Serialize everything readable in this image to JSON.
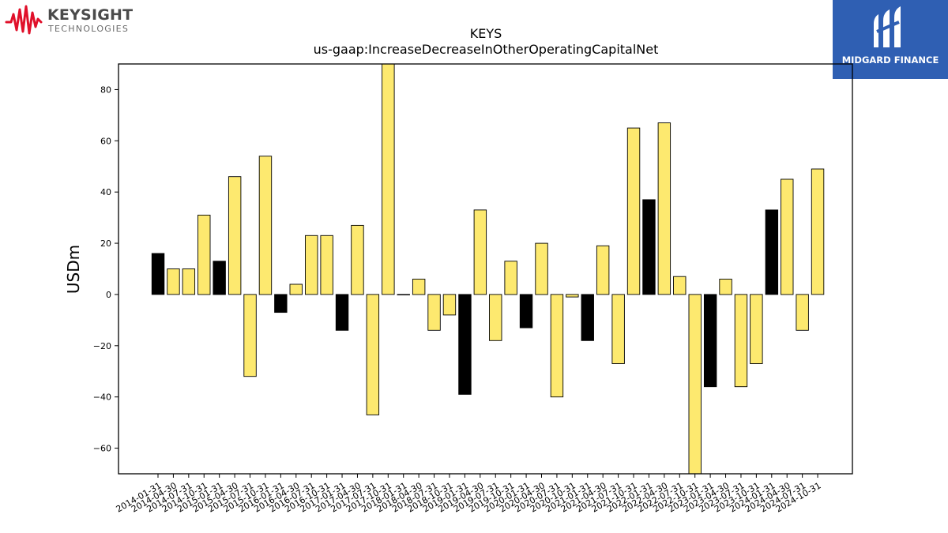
{
  "branding": {
    "left_logo_name": "KEYSIGHT",
    "left_logo_sub": "TECHNOLOGIES",
    "left_logo_color": "#e0102a",
    "right_logo_name": "MIDGARD FINANCE",
    "right_logo_bg": "#2f5fb3"
  },
  "chart_data": {
    "type": "bar",
    "title": "KEYS",
    "subtitle": "us-gaap:IncreaseDecreaseInOtherOperatingCapitalNet",
    "xlabel": "",
    "ylabel": "USDm",
    "ylim": [
      -70,
      90
    ],
    "yticks": [
      -60,
      -40,
      -20,
      0,
      20,
      40,
      60,
      80
    ],
    "grid": false,
    "colors": {
      "quarter": "#fde96f",
      "fiscal_year_end": "#000000",
      "edge": "#000000"
    },
    "categories": [
      "2014-01-31",
      "2014-04-30",
      "2014-07-31",
      "2014-10-31",
      "2015-01-31",
      "2015-04-30",
      "2015-07-31",
      "2015-10-31",
      "2016-01-31",
      "2016-04-30",
      "2016-07-31",
      "2016-10-31",
      "2017-01-31",
      "2017-04-30",
      "2017-07-31",
      "2017-10-31",
      "2018-01-31",
      "2018-04-30",
      "2018-07-31",
      "2018-10-31",
      "2019-01-31",
      "2019-04-30",
      "2019-07-31",
      "2019-10-31",
      "2020-01-31",
      "2020-04-30",
      "2020-07-31",
      "2020-10-31",
      "2021-01-31",
      "2021-04-30",
      "2021-07-31",
      "2021-10-31",
      "2022-01-31",
      "2022-04-30",
      "2022-07-31",
      "2022-10-31",
      "2023-01-31",
      "2023-04-30",
      "2023-07-31",
      "2023-10-31",
      "2024-01-31",
      "2024-04-30",
      "2024-07-31",
      "2024-10-31"
    ],
    "values": [
      16,
      10,
      10,
      31,
      13,
      46,
      -32,
      54,
      -7,
      4,
      23,
      23,
      -14,
      27,
      -47,
      90,
      0,
      6,
      -14,
      -8,
      -39,
      33,
      -18,
      13,
      -13,
      20,
      -40,
      -1,
      -18,
      19,
      -27,
      65,
      37,
      67,
      7,
      -70,
      -36,
      6,
      -36,
      -27,
      33,
      45,
      -14,
      49
    ],
    "highlight": [
      true,
      false,
      false,
      false,
      true,
      false,
      false,
      false,
      true,
      false,
      false,
      false,
      true,
      false,
      false,
      false,
      false,
      false,
      false,
      false,
      true,
      false,
      false,
      false,
      true,
      false,
      false,
      false,
      true,
      false,
      false,
      false,
      true,
      false,
      false,
      false,
      true,
      false,
      false,
      false,
      true,
      false,
      false,
      false
    ]
  }
}
